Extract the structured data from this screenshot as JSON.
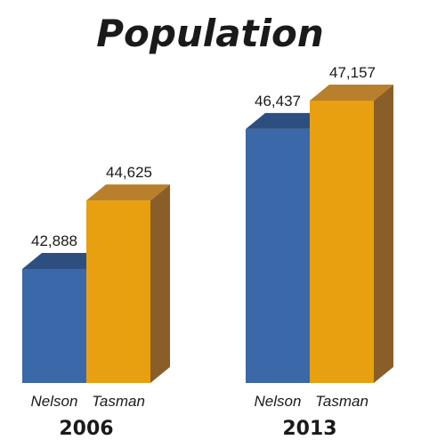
{
  "chart_data": {
    "type": "bar",
    "title": "Population",
    "groups": [
      "2006",
      "2013"
    ],
    "series": [
      {
        "name": "Nelson",
        "values": [
          42888,
          46437
        ],
        "value_labels": [
          "42,888",
          "46,437"
        ]
      },
      {
        "name": "Tasman",
        "values": [
          44625,
          47157
        ],
        "value_labels": [
          "44,625",
          "47,157"
        ]
      }
    ],
    "ylim": [
      0,
      50000
    ],
    "grid": false,
    "legend": "none",
    "colors": {
      "nelson_front": "#3a68a8",
      "nelson_top": "#2d4f80",
      "tasman_front": "#e8a010",
      "tasman_top": "#b8802c",
      "tasman_side": "#8a5e28"
    }
  }
}
